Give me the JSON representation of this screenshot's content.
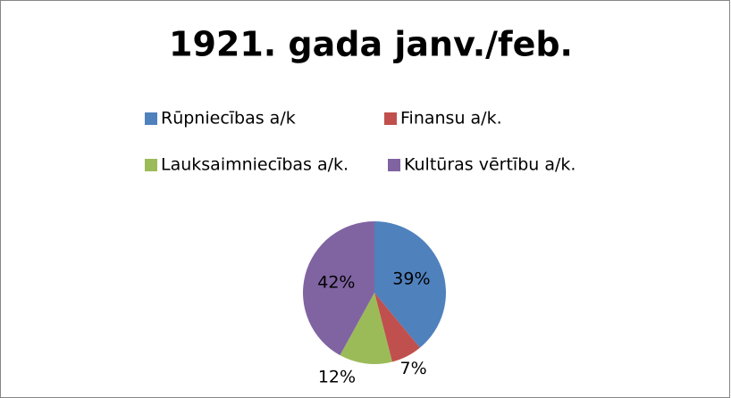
{
  "chart_data": {
    "type": "pie",
    "title": "1921. gada janv./feb.",
    "categories": [
      "Rūpniecības a/k",
      "Finansu a/k.",
      "Lauksaimniecības a/k.",
      "Kultūras vērtību a/k."
    ],
    "values": [
      39,
      7,
      12,
      42
    ],
    "value_labels": [
      "39%",
      "7%",
      "12%",
      "42%"
    ],
    "colors": [
      "#4f81bd",
      "#c0504d",
      "#9bbb59",
      "#8064a2"
    ],
    "legend": "top"
  }
}
